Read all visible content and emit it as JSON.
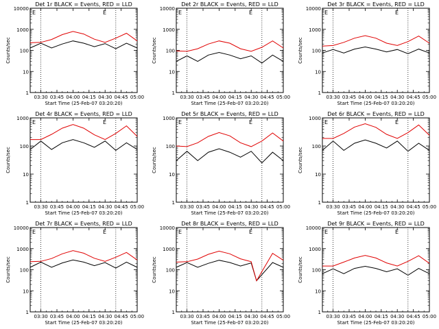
{
  "colors": {
    "events": "#000000",
    "lld": "#e00000",
    "axes": "#000000"
  },
  "chart_data": [
    {
      "type": "line",
      "title": "Det 1r BLACK = Events, RED = LLD",
      "corner_mark": "E",
      "xlabel": "Start Time (25-Feb-07 03:20:20)",
      "ylabel": "Counts/sec",
      "y_scale": "log",
      "ylim": [
        1,
        10000
      ],
      "y_ticks": [
        "1",
        "10",
        "100",
        "1000",
        "10000"
      ],
      "x_ticks": [
        "03:30",
        "03:45",
        "04:00",
        "04:15",
        "04:30",
        "04:45",
        "05:00"
      ],
      "x": [
        "03:20",
        "03:30",
        "03:40",
        "03:50",
        "04:00",
        "04:10",
        "04:20",
        "04:30",
        "04:40",
        "04:50",
        "05:00"
      ],
      "series": [
        {
          "name": "LLD",
          "color": "#e00000",
          "values": [
            230,
            240,
            330,
            560,
            790,
            600,
            340,
            240,
            380,
            650,
            280
          ]
        },
        {
          "name": "Events",
          "color": "#000000",
          "values": [
            130,
            220,
            130,
            200,
            280,
            220,
            150,
            210,
            120,
            220,
            130
          ]
        }
      ]
    },
    {
      "type": "line",
      "title": "Det 2r BLACK = Events, RED = LLD",
      "corner_mark": "E",
      "xlabel": "Start Time (25-Feb-07 03:20:20)",
      "ylabel": "Counts/sec",
      "y_scale": "log",
      "ylim": [
        1,
        10000
      ],
      "y_ticks": [
        "1",
        "10",
        "100",
        "1000",
        "10000"
      ],
      "x_ticks": [
        "03:30",
        "03:45",
        "04:00",
        "04:15",
        "04:30",
        "04:45",
        "05:00"
      ],
      "x": [
        "03:20",
        "03:30",
        "03:40",
        "03:50",
        "04:00",
        "04:10",
        "04:20",
        "04:30",
        "04:40",
        "04:50",
        "05:00"
      ],
      "series": [
        {
          "name": "LLD",
          "color": "#e00000",
          "values": [
            95,
            90,
            120,
            200,
            280,
            220,
            120,
            90,
            140,
            280,
            130
          ]
        },
        {
          "name": "Events",
          "color": "#000000",
          "values": [
            30,
            55,
            30,
            60,
            80,
            60,
            40,
            55,
            25,
            60,
            30
          ]
        }
      ]
    },
    {
      "type": "line",
      "title": "Det 3r BLACK = Events, RED = LLD",
      "corner_mark": "E",
      "xlabel": "Start Time (25-Feb-07 03:20:20)",
      "ylabel": "Counts/sec",
      "y_scale": "log",
      "ylim": [
        1,
        10000
      ],
      "y_ticks": [
        "1",
        "10",
        "100",
        "1000",
        "10000"
      ],
      "x_ticks": [
        "03:30",
        "03:45",
        "04:00",
        "04:15",
        "04:30",
        "04:45",
        "05:00"
      ],
      "x": [
        "03:20",
        "03:30",
        "03:40",
        "03:50",
        "04:00",
        "04:10",
        "04:20",
        "04:30",
        "04:40",
        "04:50",
        "05:00"
      ],
      "series": [
        {
          "name": "LLD",
          "color": "#e00000",
          "values": [
            160,
            170,
            240,
            380,
            500,
            380,
            220,
            170,
            260,
            480,
            220
          ]
        },
        {
          "name": "Events",
          "color": "#000000",
          "values": [
            75,
            110,
            75,
            115,
            145,
            115,
            85,
            110,
            70,
            115,
            75
          ]
        }
      ]
    },
    {
      "type": "line",
      "title": "Det 4r BLACK = Events, RED = LLD",
      "corner_mark": "E",
      "xlabel": "Start Time (25-Feb-07 03:20:20)",
      "ylabel": "Counts/sec",
      "y_scale": "log",
      "ylim": [
        1,
        1000
      ],
      "y_ticks": [
        "1",
        "10",
        "100",
        "1000"
      ],
      "x_ticks": [
        "03:30",
        "03:45",
        "04:00",
        "04:15",
        "04:30",
        "04:45",
        "05:00"
      ],
      "x": [
        "03:20",
        "03:30",
        "03:40",
        "03:50",
        "04:00",
        "04:10",
        "04:20",
        "04:30",
        "04:40",
        "04:50",
        "05:00"
      ],
      "series": [
        {
          "name": "LLD",
          "color": "#e00000",
          "values": [
            170,
            170,
            260,
            430,
            580,
            430,
            250,
            170,
            280,
            520,
            220
          ]
        },
        {
          "name": "Events",
          "color": "#000000",
          "values": [
            75,
            150,
            75,
            130,
            170,
            130,
            90,
            150,
            70,
            130,
            75
          ]
        }
      ]
    },
    {
      "type": "line",
      "title": "Det 5r BLACK = Events, RED = LLD",
      "corner_mark": "E",
      "xlabel": "Start Time (25-Feb-07 03:20:20)",
      "ylabel": "Counts/sec",
      "y_scale": "log",
      "ylim": [
        1,
        1000
      ],
      "y_ticks": [
        "1",
        "10",
        "100",
        "1000"
      ],
      "x_ticks": [
        "03:30",
        "03:45",
        "04:00",
        "04:15",
        "04:30",
        "04:45",
        "05:00"
      ],
      "x": [
        "03:20",
        "03:30",
        "03:40",
        "03:50",
        "04:00",
        "04:10",
        "04:20",
        "04:30",
        "04:40",
        "04:50",
        "05:00"
      ],
      "series": [
        {
          "name": "LLD",
          "color": "#e00000",
          "values": [
            100,
            95,
            130,
            220,
            300,
            230,
            130,
            95,
            150,
            290,
            150
          ]
        },
        {
          "name": "Events",
          "color": "#000000",
          "values": [
            30,
            65,
            30,
            60,
            80,
            60,
            40,
            65,
            25,
            60,
            30
          ]
        }
      ]
    },
    {
      "type": "line",
      "title": "Det 6r BLACK = Events, RED = LLD",
      "corner_mark": "E",
      "xlabel": "Start Time (25-Feb-07 03:20:20)",
      "ylabel": "Counts/sec",
      "y_scale": "log",
      "ylim": [
        1,
        1000
      ],
      "y_ticks": [
        "1",
        "10",
        "100",
        "1000"
      ],
      "x_ticks": [
        "03:30",
        "03:45",
        "04:00",
        "04:15",
        "04:30",
        "04:45",
        "05:00"
      ],
      "x": [
        "03:20",
        "03:30",
        "03:40",
        "03:50",
        "04:00",
        "04:10",
        "04:20",
        "04:30",
        "04:40",
        "04:50",
        "05:00"
      ],
      "series": [
        {
          "name": "LLD",
          "color": "#e00000",
          "values": [
            185,
            185,
            280,
            470,
            620,
            460,
            260,
            185,
            300,
            560,
            240
          ]
        },
        {
          "name": "Events",
          "color": "#000000",
          "values": [
            70,
            150,
            70,
            125,
            165,
            125,
            85,
            150,
            65,
            125,
            70
          ]
        }
      ]
    },
    {
      "type": "line",
      "title": "Det 7r BLACK = Events, RED = LLD",
      "corner_mark": "E",
      "xlabel": "Start Time (25-Feb-07 03:20:20)",
      "ylabel": "Counts/sec",
      "y_scale": "log",
      "ylim": [
        1,
        10000
      ],
      "y_ticks": [
        "1",
        "10",
        "100",
        "1000",
        "10000"
      ],
      "x_ticks": [
        "03:30",
        "03:45",
        "04:00",
        "04:15",
        "04:30",
        "04:45",
        "05:00"
      ],
      "x": [
        "03:20",
        "03:30",
        "03:40",
        "03:50",
        "04:00",
        "04:10",
        "04:20",
        "04:30",
        "04:40",
        "04:50",
        "05:00"
      ],
      "series": [
        {
          "name": "LLD",
          "color": "#e00000",
          "values": [
            240,
            250,
            340,
            570,
            800,
            610,
            350,
            250,
            390,
            660,
            290
          ]
        },
        {
          "name": "Events",
          "color": "#000000",
          "values": [
            130,
            230,
            130,
            210,
            290,
            230,
            155,
            220,
            120,
            230,
            130
          ]
        }
      ]
    },
    {
      "type": "line",
      "title": "Det 8r BLACK = Events, RED = LLD",
      "corner_mark": "E",
      "xlabel": "Start Time (25-Feb-07 03:20:20)",
      "ylabel": "Counts/sec",
      "y_scale": "log",
      "ylim": [
        1,
        10000
      ],
      "y_ticks": [
        "1",
        "10",
        "100",
        "1000",
        "10000"
      ],
      "x_ticks": [
        "03:30",
        "03:45",
        "04:00",
        "04:15",
        "04:30",
        "04:45",
        "05:00"
      ],
      "x": [
        "03:20",
        "03:30",
        "03:40",
        "03:50",
        "04:00",
        "04:10",
        "04:20",
        "04:30",
        "04:35",
        "04:50",
        "05:00"
      ],
      "series": [
        {
          "name": "LLD",
          "color": "#e00000",
          "values": [
            230,
            240,
            320,
            540,
            760,
            570,
            330,
            240,
            30,
            600,
            280
          ]
        },
        {
          "name": "Events",
          "color": "#000000",
          "values": [
            130,
            220,
            130,
            200,
            280,
            220,
            150,
            210,
            30,
            220,
            130
          ]
        }
      ]
    },
    {
      "type": "line",
      "title": "Det 9r BLACK = Events, RED = LLD",
      "corner_mark": "E",
      "xlabel": "Start Time (25-Feb-07 03:20:20)",
      "ylabel": "Counts/sec",
      "y_scale": "log",
      "ylim": [
        1,
        10000
      ],
      "y_ticks": [
        "1",
        "10",
        "100",
        "1000",
        "10000"
      ],
      "x_ticks": [
        "03:30",
        "03:45",
        "04:00",
        "04:15",
        "04:30",
        "04:45",
        "05:00"
      ],
      "x": [
        "03:20",
        "03:30",
        "03:40",
        "03:50",
        "04:00",
        "04:10",
        "04:20",
        "04:30",
        "04:40",
        "04:50",
        "05:00"
      ],
      "series": [
        {
          "name": "LLD",
          "color": "#e00000",
          "values": [
            150,
            150,
            230,
            360,
            480,
            360,
            210,
            150,
            250,
            460,
            200
          ]
        },
        {
          "name": "Events",
          "color": "#000000",
          "values": [
            65,
            110,
            65,
            115,
            145,
            115,
            80,
            110,
            55,
            115,
            65
          ]
        }
      ]
    }
  ]
}
